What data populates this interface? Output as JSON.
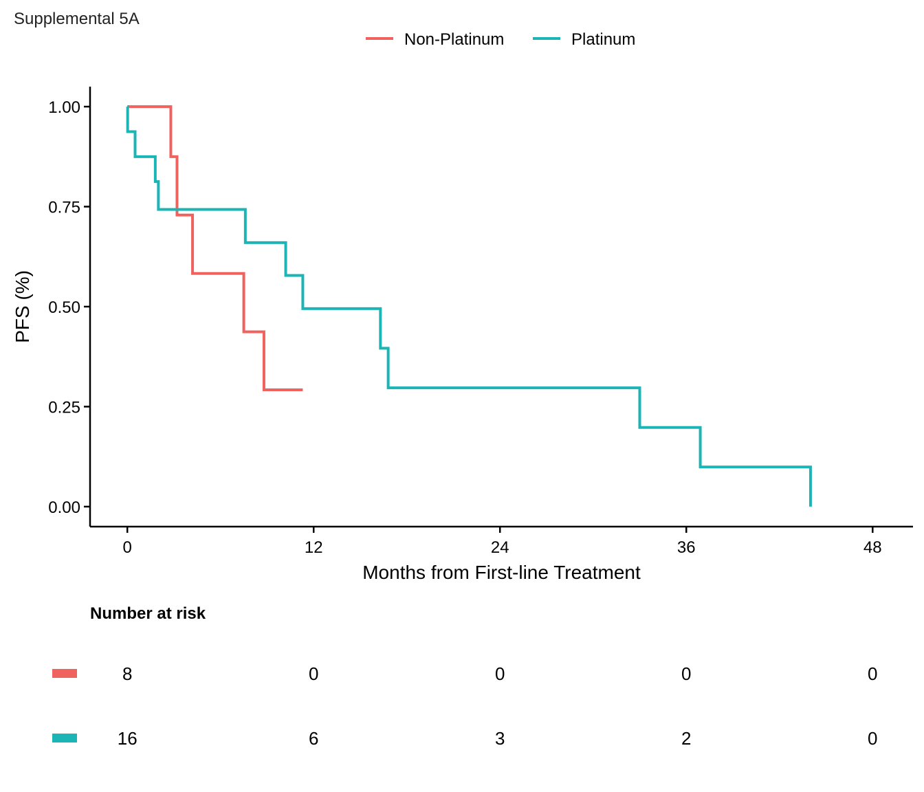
{
  "figure_label": "Supplemental 5A",
  "chart_data": {
    "type": "line",
    "step": "km",
    "title": "",
    "xlabel": "Months from First-line Treatment",
    "ylabel": "PFS (%)",
    "xlim": [
      -2.4,
      50.6
    ],
    "ylim": [
      -0.05,
      1.05
    ],
    "x_ticks": [
      0,
      12,
      24,
      36,
      48
    ],
    "y_ticks": [
      0.0,
      0.25,
      0.5,
      0.75,
      1.0
    ],
    "y_tick_labels": [
      "0.00",
      "0.25",
      "0.50",
      "0.75",
      "1.00"
    ],
    "grid": false,
    "legend_position": "top",
    "series": [
      {
        "name": "Non-Platinum",
        "color": "#F0625E",
        "points": [
          [
            0,
            1.0
          ],
          [
            2.8,
            0.875
          ],
          [
            3.2,
            0.729
          ],
          [
            4.2,
            0.583
          ],
          [
            7.5,
            0.437
          ],
          [
            8.8,
            0.292
          ],
          [
            11.3,
            0.292
          ]
        ]
      },
      {
        "name": "Platinum",
        "color": "#1CB5B6",
        "points": [
          [
            0,
            1.0
          ],
          [
            0.02,
            0.9375
          ],
          [
            0.5,
            0.875
          ],
          [
            1.8,
            0.8125
          ],
          [
            2.0,
            0.743
          ],
          [
            7.6,
            0.66
          ],
          [
            10.2,
            0.578
          ],
          [
            11.3,
            0.495
          ],
          [
            16.3,
            0.396
          ],
          [
            16.8,
            0.297
          ],
          [
            33.0,
            0.198
          ],
          [
            36.9,
            0.099
          ],
          [
            44.0,
            0.0
          ]
        ]
      }
    ],
    "risk_table": {
      "title": "Number at risk",
      "times": [
        0,
        12,
        24,
        36,
        48
      ],
      "rows": [
        {
          "series": "Non-Platinum",
          "color": "#F0625E",
          "values": [
            "8",
            "0",
            "0",
            "0",
            "0"
          ]
        },
        {
          "series": "Platinum",
          "color": "#1CB5B6",
          "values": [
            "16",
            "6",
            "3",
            "2",
            "0"
          ]
        }
      ]
    }
  }
}
